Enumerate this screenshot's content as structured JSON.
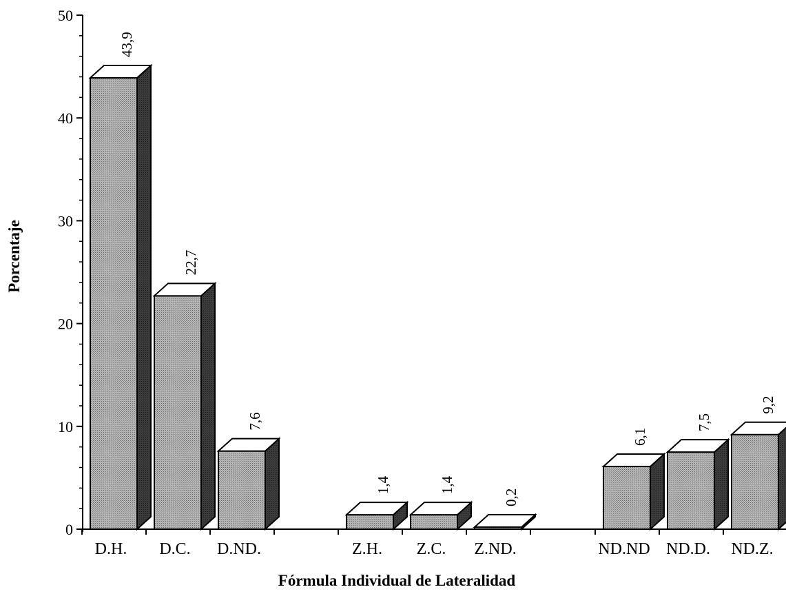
{
  "chart_data": {
    "type": "bar",
    "style": "3d-bars",
    "title": "",
    "xlabel": "Fórmula Individual de Lateralidad",
    "ylabel": "Porcentaje",
    "ylim": [
      0,
      50
    ],
    "yticks": [
      0,
      10,
      20,
      30,
      40,
      50
    ],
    "grid": false,
    "legend": "none",
    "groups": [
      {
        "categories": [
          "D.H.",
          "D.C.",
          "D.ND."
        ],
        "values": [
          43.9,
          22.7,
          7.6
        ],
        "value_labels": [
          "43,9",
          "22,7",
          "7,6"
        ]
      },
      {
        "categories": [
          "Z.H.",
          "Z.C.",
          "Z.ND."
        ],
        "values": [
          1.4,
          1.4,
          0.2
        ],
        "value_labels": [
          "1,4",
          "1,4",
          "0,2"
        ]
      },
      {
        "categories": [
          "ND.ND",
          "ND.D.",
          "ND.Z."
        ],
        "values": [
          6.1,
          7.5,
          9.2
        ],
        "value_labels": [
          "6,1",
          "7,5",
          "9,2"
        ]
      }
    ],
    "colors": {
      "bar_front": "#a6a6a6",
      "bar_top": "#ffffff",
      "bar_side": "#3a3a3a",
      "outline": "#000000"
    }
  }
}
